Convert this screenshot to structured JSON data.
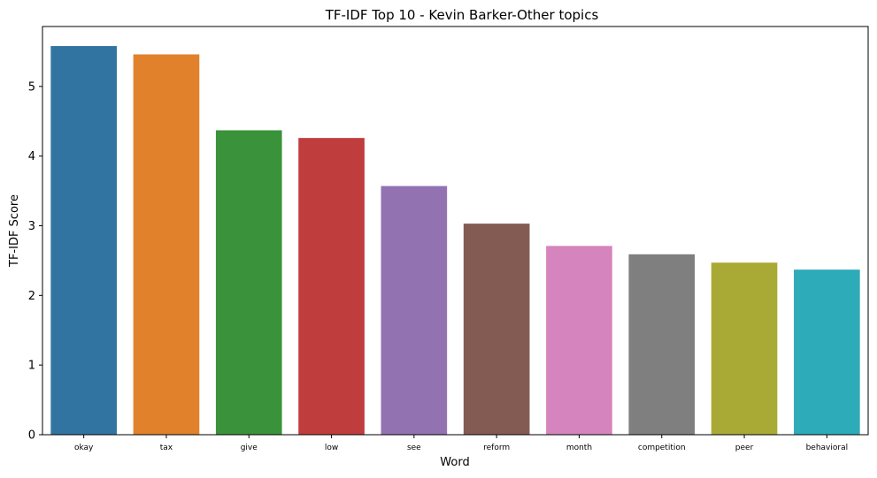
{
  "chart_data": {
    "type": "bar",
    "title": "TF-IDF Top 10 - Kevin Barker-Other topics",
    "xlabel": "Word",
    "ylabel": "TF-IDF Score",
    "categories": [
      "okay",
      "tax",
      "give",
      "low",
      "see",
      "reform",
      "month",
      "competition",
      "peer",
      "behavioral"
    ],
    "values": [
      5.58,
      5.46,
      4.37,
      4.26,
      3.57,
      3.03,
      2.71,
      2.59,
      2.47,
      2.37
    ],
    "colors": [
      "#3274a1",
      "#e1812c",
      "#3a923a",
      "#c03d3e",
      "#9372b2",
      "#845b53",
      "#d684bd",
      "#7f7f7f",
      "#a9aa35",
      "#2eabb8"
    ],
    "ylim": [
      0,
      5.86
    ],
    "yticks": [
      0,
      1,
      2,
      3,
      4,
      5
    ],
    "grid": false,
    "legend": "none"
  }
}
